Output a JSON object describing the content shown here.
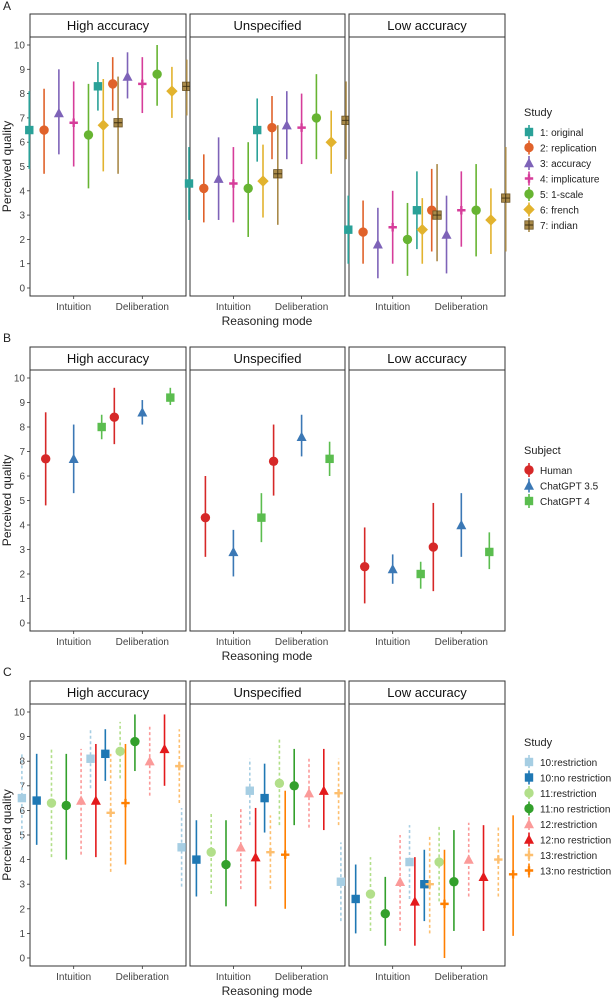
{
  "figure": {
    "ylabel": "Perceived quality",
    "xlabel": "Reasoning mode",
    "y_ticks": [
      "0",
      "1",
      "2",
      "3",
      "4",
      "5",
      "6",
      "7",
      "8",
      "9",
      "10"
    ],
    "facets": [
      "High accuracy",
      "Unspecified",
      "Low accuracy"
    ],
    "x_categories": [
      "Intuition",
      "Deliberation"
    ]
  },
  "chart_data": [
    {
      "type": "scatter",
      "panel_label": "A",
      "facets": [
        "High accuracy",
        "Unspecified",
        "Low accuracy"
      ],
      "categories": [
        "Intuition",
        "Deliberation"
      ],
      "xlabel": "Reasoning mode",
      "ylabel": "Perceived quality",
      "ylim": [
        0,
        10
      ],
      "legend": {
        "title": "Study",
        "position": "right"
      },
      "series": [
        {
          "name": "1: original",
          "color": "#2aa198",
          "shape": "square",
          "values": [
            [
              6.5,
              8.3
            ],
            [
              4.3,
              6.5
            ],
            [
              2.4,
              3.2
            ]
          ],
          "lower": [
            [
              4.9,
              7.3
            ],
            [
              2.8,
              5.2
            ],
            [
              1.0,
              1.6
            ]
          ],
          "upper": [
            [
              8.1,
              9.3
            ],
            [
              5.8,
              7.8
            ],
            [
              3.8,
              4.8
            ]
          ]
        },
        {
          "name": "2: replication",
          "color": "#e0622b",
          "shape": "circle",
          "values": [
            [
              6.5,
              8.4
            ],
            [
              4.1,
              6.6
            ],
            [
              2.3,
              3.2
            ]
          ],
          "lower": [
            [
              4.7,
              7.3
            ],
            [
              2.7,
              5.3
            ],
            [
              1.0,
              1.5
            ]
          ],
          "upper": [
            [
              8.2,
              9.5
            ],
            [
              5.5,
              7.9
            ],
            [
              3.6,
              4.9
            ]
          ]
        },
        {
          "name": "3: accuracy",
          "color": "#7e63b8",
          "shape": "triangle",
          "values": [
            [
              7.2,
              8.7
            ],
            [
              4.5,
              6.7
            ],
            [
              1.8,
              2.2
            ]
          ],
          "lower": [
            [
              5.5,
              7.8
            ],
            [
              2.8,
              5.3
            ],
            [
              0.4,
              0.6
            ]
          ],
          "upper": [
            [
              9.0,
              9.7
            ],
            [
              6.2,
              8.1
            ],
            [
              3.3,
              3.8
            ]
          ]
        },
        {
          "name": "4: implicature",
          "color": "#d63d9a",
          "shape": "plus",
          "values": [
            [
              6.8,
              8.4
            ],
            [
              4.3,
              6.6
            ],
            [
              2.5,
              3.2
            ]
          ],
          "lower": [
            [
              5.0,
              7.2
            ],
            [
              2.7,
              5.1
            ],
            [
              1.0,
              1.7
            ]
          ],
          "upper": [
            [
              8.5,
              9.5
            ],
            [
              5.8,
              8.0
            ],
            [
              4.0,
              4.8
            ]
          ]
        },
        {
          "name": "5: 1-scale",
          "color": "#67b432",
          "shape": "circle",
          "values": [
            [
              6.3,
              8.8
            ],
            [
              4.1,
              7.0
            ],
            [
              2.0,
              3.2
            ]
          ],
          "lower": [
            [
              4.1,
              7.5
            ],
            [
              2.1,
              5.3
            ],
            [
              0.5,
              1.3
            ]
          ],
          "upper": [
            [
              8.4,
              10.0
            ],
            [
              6.0,
              8.8
            ],
            [
              3.5,
              5.1
            ]
          ]
        },
        {
          "name": "6: french",
          "color": "#e2b32e",
          "shape": "diamond",
          "values": [
            [
              6.7,
              8.1
            ],
            [
              4.4,
              6.0
            ],
            [
              2.4,
              2.8
            ]
          ],
          "lower": [
            [
              4.8,
              7.0
            ],
            [
              2.9,
              4.7
            ],
            [
              1.0,
              1.4
            ]
          ],
          "upper": [
            [
              8.6,
              9.1
            ],
            [
              5.9,
              7.3
            ],
            [
              3.7,
              4.1
            ]
          ]
        },
        {
          "name": "7: indian",
          "color": "#a98a49",
          "shape": "square-cross",
          "values": [
            [
              6.8,
              8.3
            ],
            [
              4.7,
              6.9
            ],
            [
              3.0,
              3.7
            ]
          ],
          "lower": [
            [
              4.7,
              7.1
            ],
            [
              2.6,
              5.3
            ],
            [
              1.1,
              1.5
            ]
          ],
          "upper": [
            [
              8.7,
              9.4
            ],
            [
              6.7,
              8.5
            ],
            [
              5.1,
              5.8
            ]
          ]
        }
      ]
    },
    {
      "type": "scatter",
      "panel_label": "B",
      "facets": [
        "High accuracy",
        "Unspecified",
        "Low accuracy"
      ],
      "categories": [
        "Intuition",
        "Deliberation"
      ],
      "xlabel": "Reasoning mode",
      "ylabel": "Perceived quality",
      "ylim": [
        0,
        10
      ],
      "legend": {
        "title": "Subject",
        "position": "right"
      },
      "series": [
        {
          "name": "Human",
          "color": "#d62828",
          "shape": "circle",
          "values": [
            [
              6.7,
              8.4
            ],
            [
              4.3,
              6.6
            ],
            [
              2.3,
              3.1
            ]
          ],
          "lower": [
            [
              4.8,
              7.3
            ],
            [
              2.7,
              5.2
            ],
            [
              0.8,
              1.3
            ]
          ],
          "upper": [
            [
              8.6,
              9.6
            ],
            [
              6.0,
              8.1
            ],
            [
              3.9,
              4.9
            ]
          ]
        },
        {
          "name": "ChatGPT 3.5",
          "color": "#3b78b5",
          "shape": "triangle",
          "values": [
            [
              6.7,
              8.6
            ],
            [
              2.9,
              7.6
            ],
            [
              2.2,
              4.0
            ]
          ],
          "lower": [
            [
              5.3,
              8.1
            ],
            [
              1.9,
              6.8
            ],
            [
              1.6,
              2.7
            ]
          ],
          "upper": [
            [
              8.1,
              9.1
            ],
            [
              3.8,
              8.5
            ],
            [
              2.8,
              5.3
            ]
          ]
        },
        {
          "name": "ChatGPT 4",
          "color": "#5bbd4f",
          "shape": "square",
          "values": [
            [
              8.0,
              9.2
            ],
            [
              4.3,
              6.7
            ],
            [
              2.0,
              2.9
            ]
          ],
          "lower": [
            [
              7.5,
              8.9
            ],
            [
              3.3,
              6.0
            ],
            [
              1.4,
              2.2
            ]
          ],
          "upper": [
            [
              8.5,
              9.6
            ],
            [
              5.3,
              7.4
            ],
            [
              2.5,
              3.7
            ]
          ]
        }
      ]
    },
    {
      "type": "scatter",
      "panel_label": "C",
      "facets": [
        "High accuracy",
        "Unspecified",
        "Low accuracy"
      ],
      "categories": [
        "Intuition",
        "Deliberation"
      ],
      "xlabel": "Reasoning mode",
      "ylabel": "Perceived quality",
      "ylim": [
        0,
        10
      ],
      "legend": {
        "title": "Study",
        "position": "right"
      },
      "series": [
        {
          "name": "10:restriction",
          "color": "#a6cee3",
          "shape": "square",
          "dashed": true,
          "values": [
            [
              6.5,
              8.1
            ],
            [
              4.5,
              6.8
            ],
            [
              3.1,
              3.9
            ]
          ],
          "lower": [
            [
              4.8,
              6.9
            ],
            [
              2.9,
              5.4
            ],
            [
              1.5,
              2.4
            ]
          ],
          "upper": [
            [
              8.3,
              9.3
            ],
            [
              6.1,
              8.1
            ],
            [
              4.7,
              5.4
            ]
          ]
        },
        {
          "name": "10:no restriction",
          "color": "#1f78b4",
          "shape": "square",
          "values": [
            [
              6.4,
              8.3
            ],
            [
              4.0,
              6.5
            ],
            [
              2.4,
              3.0
            ]
          ],
          "lower": [
            [
              4.6,
              7.2
            ],
            [
              2.5,
              5.1
            ],
            [
              1.0,
              1.5
            ]
          ],
          "upper": [
            [
              8.3,
              9.3
            ],
            [
              5.6,
              7.9
            ],
            [
              3.8,
              4.4
            ]
          ]
        },
        {
          "name": "11:restriction",
          "color": "#b2df8a",
          "shape": "circle",
          "dashed": true,
          "values": [
            [
              6.3,
              8.4
            ],
            [
              4.3,
              7.1
            ],
            [
              2.6,
              3.9
            ]
          ],
          "lower": [
            [
              4.1,
              7.3
            ],
            [
              2.6,
              5.4
            ],
            [
              1.1,
              2.3
            ]
          ],
          "upper": [
            [
              8.5,
              9.6
            ],
            [
              5.9,
              8.9
            ],
            [
              4.1,
              5.4
            ]
          ]
        },
        {
          "name": "11:no restriction",
          "color": "#33a02c",
          "shape": "circle",
          "values": [
            [
              6.2,
              8.8
            ],
            [
              3.8,
              7.0
            ],
            [
              1.8,
              3.1
            ]
          ],
          "lower": [
            [
              4.0,
              7.6
            ],
            [
              2.1,
              5.4
            ],
            [
              0.5,
              1.1
            ]
          ],
          "upper": [
            [
              8.3,
              9.9
            ],
            [
              5.6,
              8.5
            ],
            [
              3.3,
              5.2
            ]
          ]
        },
        {
          "name": "12:restriction",
          "color": "#fb9a99",
          "shape": "triangle",
          "dashed": true,
          "values": [
            [
              6.4,
              8.0
            ],
            [
              4.5,
              6.7
            ],
            [
              3.1,
              4.0
            ]
          ],
          "lower": [
            [
              4.2,
              6.6
            ],
            [
              2.8,
              5.3
            ],
            [
              1.1,
              2.5
            ]
          ],
          "upper": [
            [
              8.5,
              9.4
            ],
            [
              6.1,
              8.1
            ],
            [
              5.0,
              5.5
            ]
          ]
        },
        {
          "name": "12:no restriction",
          "color": "#e31a1c",
          "shape": "triangle",
          "values": [
            [
              6.4,
              8.5
            ],
            [
              4.1,
              6.8
            ],
            [
              2.3,
              3.3
            ]
          ],
          "lower": [
            [
              4.1,
              7.0
            ],
            [
              2.1,
              5.2
            ],
            [
              0.5,
              1.1
            ]
          ],
          "upper": [
            [
              8.7,
              9.9
            ],
            [
              6.1,
              8.5
            ],
            [
              4.1,
              5.4
            ]
          ]
        },
        {
          "name": "13:restriction",
          "color": "#fdbf6f",
          "shape": "plus",
          "dashed": true,
          "values": [
            [
              5.9,
              7.8
            ],
            [
              4.3,
              6.7
            ],
            [
              3.0,
              4.0
            ]
          ],
          "lower": [
            [
              3.5,
              6.3
            ],
            [
              2.8,
              5.4
            ],
            [
              1.0,
              2.5
            ]
          ],
          "upper": [
            [
              8.3,
              9.3
            ],
            [
              5.8,
              8.1
            ],
            [
              5.0,
              5.4
            ]
          ]
        },
        {
          "name": "13:no restriction",
          "color": "#ff7f00",
          "shape": "plus",
          "values": [
            [
              6.3,
              8.4
            ],
            [
              4.2,
              7.0
            ],
            [
              2.2,
              3.4
            ]
          ],
          "lower": [
            [
              3.8,
              6.9
            ],
            [
              2.0,
              5.2
            ],
            [
              0.0,
              0.9
            ]
          ],
          "upper": [
            [
              8.7,
              9.9
            ],
            [
              6.8,
              8.8
            ],
            [
              4.4,
              5.8
            ]
          ]
        }
      ]
    }
  ]
}
